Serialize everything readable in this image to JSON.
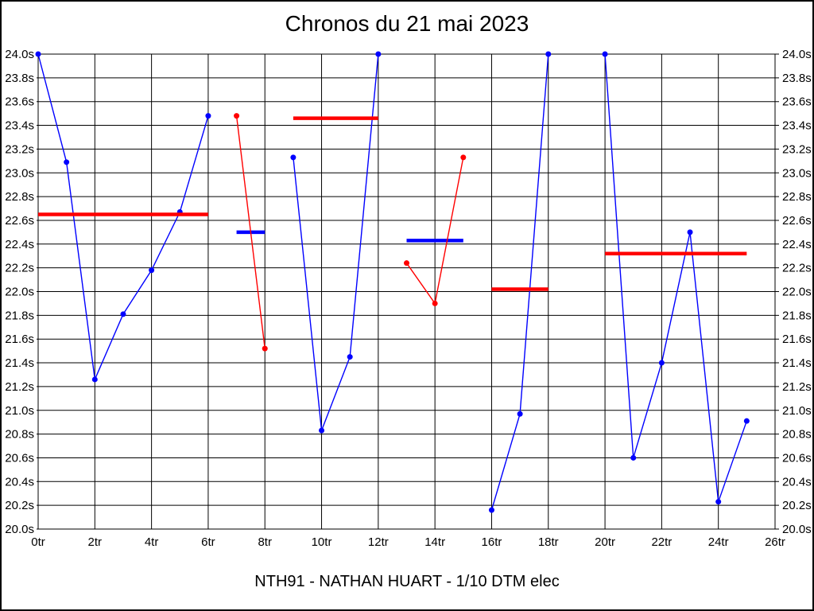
{
  "header": {
    "title": "Chronos du 21 mai 2023"
  },
  "footer": {
    "label": "NTH91 - NATHAN HUART - 1/10 DTM elec"
  },
  "colors": {
    "blue_series": "#0000ff",
    "red_series": "#ff0000",
    "grid": "#000000",
    "background": "#ffffff"
  },
  "chart_data": {
    "type": "line",
    "title": "Chronos du 21 mai 2023",
    "subtitle": "NTH91 - NATHAN HUART - 1/10 DTM elec",
    "x_unit": "tr",
    "y_unit": "s",
    "xlim": [
      0,
      26
    ],
    "ylim": [
      20.0,
      24.0
    ],
    "grid": true,
    "legend": "none",
    "x_ticks": [
      {
        "label": "0tr",
        "value": 0
      },
      {
        "label": "2tr",
        "value": 2
      },
      {
        "label": "4tr",
        "value": 4
      },
      {
        "label": "6tr",
        "value": 6
      },
      {
        "label": "8tr",
        "value": 8
      },
      {
        "label": "10tr",
        "value": 10
      },
      {
        "label": "12tr",
        "value": 12
      },
      {
        "label": "14tr",
        "value": 14
      },
      {
        "label": "16tr",
        "value": 16
      },
      {
        "label": "18tr",
        "value": 18
      },
      {
        "label": "20tr",
        "value": 20
      },
      {
        "label": "22tr",
        "value": 22
      },
      {
        "label": "24tr",
        "value": 24
      },
      {
        "label": "26tr",
        "value": 26
      }
    ],
    "y_ticks": [
      {
        "label": "24.0s",
        "value": 24.0
      },
      {
        "label": "23.8s",
        "value": 23.8
      },
      {
        "label": "23.6s",
        "value": 23.6
      },
      {
        "label": "23.4s",
        "value": 23.4
      },
      {
        "label": "23.2s",
        "value": 23.2
      },
      {
        "label": "23.0s",
        "value": 23.0
      },
      {
        "label": "22.8s",
        "value": 22.8
      },
      {
        "label": "22.6s",
        "value": 22.6
      },
      {
        "label": "22.4s",
        "value": 22.4
      },
      {
        "label": "22.2s",
        "value": 22.2
      },
      {
        "label": "22.0s",
        "value": 22.0
      },
      {
        "label": "21.8s",
        "value": 21.8
      },
      {
        "label": "21.6s",
        "value": 21.6
      },
      {
        "label": "21.4s",
        "value": 21.4
      },
      {
        "label": "21.2s",
        "value": 21.2
      },
      {
        "label": "21.0s",
        "value": 21.0
      },
      {
        "label": "20.8s",
        "value": 20.8
      },
      {
        "label": "20.6s",
        "value": 20.6
      },
      {
        "label": "20.4s",
        "value": 20.4
      },
      {
        "label": "20.2s",
        "value": 20.2
      },
      {
        "label": "20.0s",
        "value": 20.0
      }
    ],
    "series": [
      {
        "name": "blue-run-1",
        "color": "#0000ff",
        "points": [
          [
            0,
            24.0
          ],
          [
            1,
            23.09
          ],
          [
            2,
            21.26
          ],
          [
            3,
            21.81
          ],
          [
            4,
            22.18
          ],
          [
            5,
            22.67
          ],
          [
            6,
            23.48
          ]
        ]
      },
      {
        "name": "red-run-1",
        "color": "#ff0000",
        "points": [
          [
            7,
            23.48
          ],
          [
            8,
            21.52
          ]
        ]
      },
      {
        "name": "blue-run-2",
        "color": "#0000ff",
        "points": [
          [
            9,
            23.13
          ],
          [
            10,
            20.83
          ],
          [
            11,
            21.45
          ],
          [
            12,
            24.0
          ]
        ]
      },
      {
        "name": "red-run-2",
        "color": "#ff0000",
        "points": [
          [
            13,
            22.24
          ],
          [
            14,
            21.9
          ],
          [
            15,
            23.13
          ]
        ]
      },
      {
        "name": "blue-run-3",
        "color": "#0000ff",
        "points": [
          [
            16,
            20.16
          ],
          [
            17,
            20.97
          ],
          [
            18,
            24.0
          ]
        ]
      },
      {
        "name": "blue-run-4",
        "color": "#0000ff",
        "points": [
          [
            20,
            24.0
          ],
          [
            21,
            20.6
          ],
          [
            22,
            21.4
          ],
          [
            23,
            22.5
          ],
          [
            24,
            20.23
          ],
          [
            25,
            20.91
          ]
        ]
      }
    ],
    "average_lines": [
      {
        "name": "avg-segment-1",
        "color": "#ff0000",
        "from": 0,
        "to": 6,
        "value": 22.65
      },
      {
        "name": "avg-segment-2",
        "color": "#0000ff",
        "from": 7,
        "to": 8,
        "value": 22.5
      },
      {
        "name": "avg-segment-3",
        "color": "#ff0000",
        "from": 9,
        "to": 12,
        "value": 23.46
      },
      {
        "name": "avg-segment-4",
        "color": "#0000ff",
        "from": 13,
        "to": 15,
        "value": 22.43
      },
      {
        "name": "avg-segment-5",
        "color": "#ff0000",
        "from": 16,
        "to": 18,
        "value": 22.02
      },
      {
        "name": "avg-segment-6",
        "color": "#ff0000",
        "from": 20,
        "to": 25,
        "value": 22.32
      }
    ]
  }
}
